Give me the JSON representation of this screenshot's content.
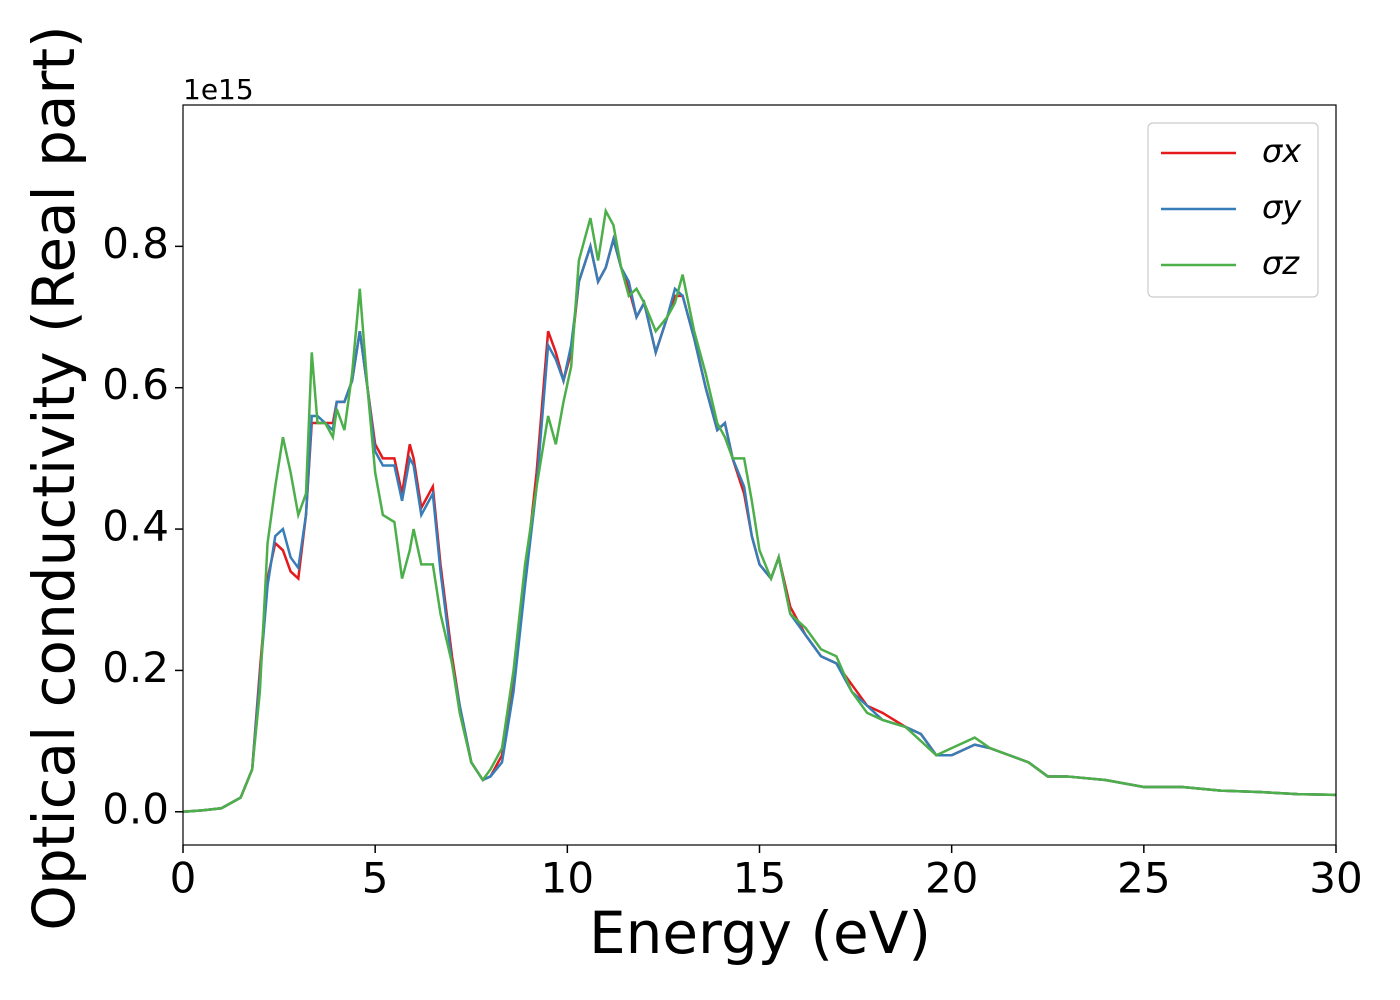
{
  "chart_data": {
    "type": "line",
    "xlabel": "Energy (eV)",
    "ylabel": "Optical conductivity (Real part)",
    "y_offset_label": "1e15",
    "x": [
      0,
      0.5,
      1.0,
      1.5,
      1.8,
      2.0,
      2.2,
      2.4,
      2.6,
      2.8,
      3.0,
      3.2,
      3.35,
      3.5,
      3.7,
      3.9,
      4.0,
      4.2,
      4.4,
      4.6,
      4.8,
      5.0,
      5.2,
      5.5,
      5.7,
      5.9,
      6.0,
      6.2,
      6.5,
      6.7,
      7.0,
      7.2,
      7.5,
      7.8,
      8.0,
      8.3,
      8.6,
      8.9,
      9.2,
      9.5,
      9.7,
      9.9,
      10.1,
      10.3,
      10.6,
      10.8,
      11.0,
      11.2,
      11.4,
      11.6,
      11.8,
      12.0,
      12.3,
      12.6,
      12.8,
      13.0,
      13.3,
      13.6,
      13.9,
      14.1,
      14.3,
      14.6,
      14.8,
      15.0,
      15.3,
      15.5,
      15.8,
      16.2,
      16.6,
      17.0,
      17.4,
      17.8,
      18.2,
      18.8,
      19.2,
      19.6,
      20.0,
      20.6,
      21.0,
      21.5,
      22.0,
      22.5,
      23.0,
      24.0,
      25.0,
      26.0,
      27.0,
      28.0,
      29.0,
      30.0
    ],
    "series": [
      {
        "name": "σx",
        "color": "#e41a1c",
        "values": [
          0,
          0.002,
          0.005,
          0.02,
          0.06,
          0.2,
          0.33,
          0.38,
          0.37,
          0.34,
          0.33,
          0.42,
          0.55,
          0.55,
          0.55,
          0.55,
          0.58,
          0.58,
          0.61,
          0.68,
          0.6,
          0.52,
          0.5,
          0.5,
          0.45,
          0.52,
          0.5,
          0.43,
          0.46,
          0.35,
          0.22,
          0.15,
          0.07,
          0.045,
          0.05,
          0.08,
          0.18,
          0.33,
          0.48,
          0.68,
          0.65,
          0.61,
          0.65,
          0.75,
          0.8,
          0.75,
          0.77,
          0.81,
          0.77,
          0.74,
          0.7,
          0.72,
          0.65,
          0.7,
          0.73,
          0.73,
          0.67,
          0.6,
          0.54,
          0.55,
          0.5,
          0.45,
          0.39,
          0.35,
          0.33,
          0.36,
          0.29,
          0.25,
          0.22,
          0.21,
          0.18,
          0.15,
          0.14,
          0.12,
          0.11,
          0.08,
          0.08,
          0.095,
          0.09,
          0.08,
          0.07,
          0.05,
          0.05,
          0.045,
          0.035,
          0.035,
          0.03,
          0.028,
          0.025,
          0.024
        ]
      },
      {
        "name": "σy",
        "color": "#377eb8",
        "values": [
          0,
          0.002,
          0.005,
          0.02,
          0.06,
          0.19,
          0.32,
          0.39,
          0.4,
          0.36,
          0.345,
          0.42,
          0.56,
          0.56,
          0.55,
          0.54,
          0.58,
          0.58,
          0.61,
          0.68,
          0.6,
          0.51,
          0.49,
          0.49,
          0.44,
          0.5,
          0.49,
          0.42,
          0.45,
          0.34,
          0.21,
          0.15,
          0.07,
          0.045,
          0.05,
          0.07,
          0.17,
          0.32,
          0.46,
          0.66,
          0.64,
          0.61,
          0.66,
          0.75,
          0.8,
          0.75,
          0.77,
          0.81,
          0.77,
          0.75,
          0.7,
          0.72,
          0.65,
          0.7,
          0.74,
          0.73,
          0.67,
          0.6,
          0.54,
          0.55,
          0.5,
          0.46,
          0.39,
          0.35,
          0.33,
          0.36,
          0.28,
          0.25,
          0.22,
          0.21,
          0.17,
          0.15,
          0.13,
          0.12,
          0.11,
          0.08,
          0.08,
          0.095,
          0.09,
          0.08,
          0.07,
          0.05,
          0.05,
          0.045,
          0.035,
          0.035,
          0.03,
          0.028,
          0.025,
          0.024
        ]
      },
      {
        "name": "σz",
        "color": "#4daf4a",
        "values": [
          0,
          0.002,
          0.005,
          0.02,
          0.06,
          0.17,
          0.38,
          0.46,
          0.53,
          0.48,
          0.42,
          0.45,
          0.65,
          0.55,
          0.55,
          0.53,
          0.57,
          0.54,
          0.62,
          0.74,
          0.6,
          0.48,
          0.42,
          0.41,
          0.33,
          0.37,
          0.4,
          0.35,
          0.35,
          0.28,
          0.21,
          0.14,
          0.07,
          0.045,
          0.06,
          0.09,
          0.2,
          0.35,
          0.46,
          0.56,
          0.52,
          0.58,
          0.63,
          0.78,
          0.84,
          0.78,
          0.85,
          0.83,
          0.77,
          0.73,
          0.74,
          0.72,
          0.68,
          0.7,
          0.72,
          0.76,
          0.68,
          0.62,
          0.55,
          0.53,
          0.5,
          0.5,
          0.44,
          0.37,
          0.33,
          0.36,
          0.28,
          0.26,
          0.23,
          0.22,
          0.17,
          0.14,
          0.13,
          0.12,
          0.1,
          0.08,
          0.09,
          0.105,
          0.09,
          0.08,
          0.07,
          0.05,
          0.05,
          0.045,
          0.035,
          0.035,
          0.03,
          0.028,
          0.025,
          0.024
        ]
      }
    ],
    "xlim": [
      0,
      30
    ],
    "xticks": [
      0,
      5,
      10,
      15,
      20,
      25,
      30
    ],
    "ylim": [
      -0.047,
      1.0
    ],
    "yticks": [
      {
        "value": 0,
        "label": "0.0"
      },
      0.2,
      0.4,
      0.6,
      0.8
    ],
    "grid": false,
    "legend": "upper right"
  }
}
